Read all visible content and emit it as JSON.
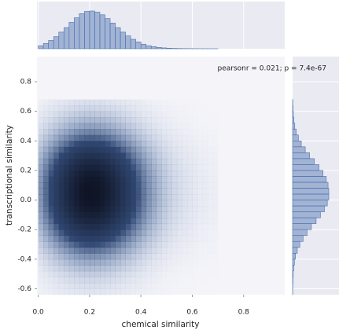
{
  "chart_data": {
    "type": "jointplot",
    "annotation": "pearsonr = 0.021; p = 7.4e-67",
    "xlabel": "chemical similarity",
    "ylabel": "transcriptional similarity",
    "xlim": [
      -0.005,
      0.96
    ],
    "ylim": [
      -0.64,
      0.97
    ],
    "xticks": [
      {
        "value": 0,
        "label": "0.0"
      },
      0.2,
      0.4,
      0.6,
      0.8
    ],
    "yticks": [
      -0.6,
      -0.4,
      -0.2,
      {
        "value": 0,
        "label": "0.0"
      },
      0.2,
      0.4,
      0.6,
      0.8
    ],
    "grid": true,
    "color": "#4c72b0",
    "marginal_x": {
      "bins": [
        0,
        0.02,
        0.04,
        0.06,
        0.08,
        0.1,
        0.12,
        0.14,
        0.16,
        0.18,
        0.2,
        0.22,
        0.24,
        0.26,
        0.28,
        0.3,
        0.32,
        0.34,
        0.36,
        0.38,
        0.4,
        0.42,
        0.44,
        0.46,
        0.48,
        0.5,
        0.52,
        0.54,
        0.56,
        0.58,
        0.6,
        0.62,
        0.64,
        0.66,
        0.68,
        0.7
      ],
      "values": [
        8,
        14,
        22,
        32,
        44,
        56,
        70,
        82,
        93,
        99,
        100,
        97,
        90,
        80,
        68,
        56,
        44,
        34,
        25,
        18,
        12,
        8,
        5.5,
        3.5,
        2.2,
        1.4,
        0.9,
        0.6,
        0.4,
        0.3,
        0.2,
        0.1,
        0.1,
        0.05,
        0.05
      ]
    },
    "marginal_y": {
      "bins": [
        -0.64,
        -0.6,
        -0.56,
        -0.52,
        -0.48,
        -0.44,
        -0.4,
        -0.36,
        -0.32,
        -0.28,
        -0.24,
        -0.2,
        -0.16,
        -0.12,
        -0.08,
        -0.04,
        0,
        0.04,
        0.08,
        0.12,
        0.16,
        0.2,
        0.24,
        0.28,
        0.32,
        0.36,
        0.4,
        0.44,
        0.48,
        0.52,
        0.56,
        0.6,
        0.64,
        0.68
      ],
      "values": [
        0.3,
        0.5,
        0.9,
        1.6,
        3,
        5,
        8,
        13,
        20,
        29,
        40,
        52,
        65,
        77,
        88,
        96,
        100,
        100,
        98,
        93,
        84,
        73,
        60,
        47,
        35,
        24,
        16,
        10,
        6,
        3.5,
        2,
        1,
        0.5
      ]
    }
  }
}
